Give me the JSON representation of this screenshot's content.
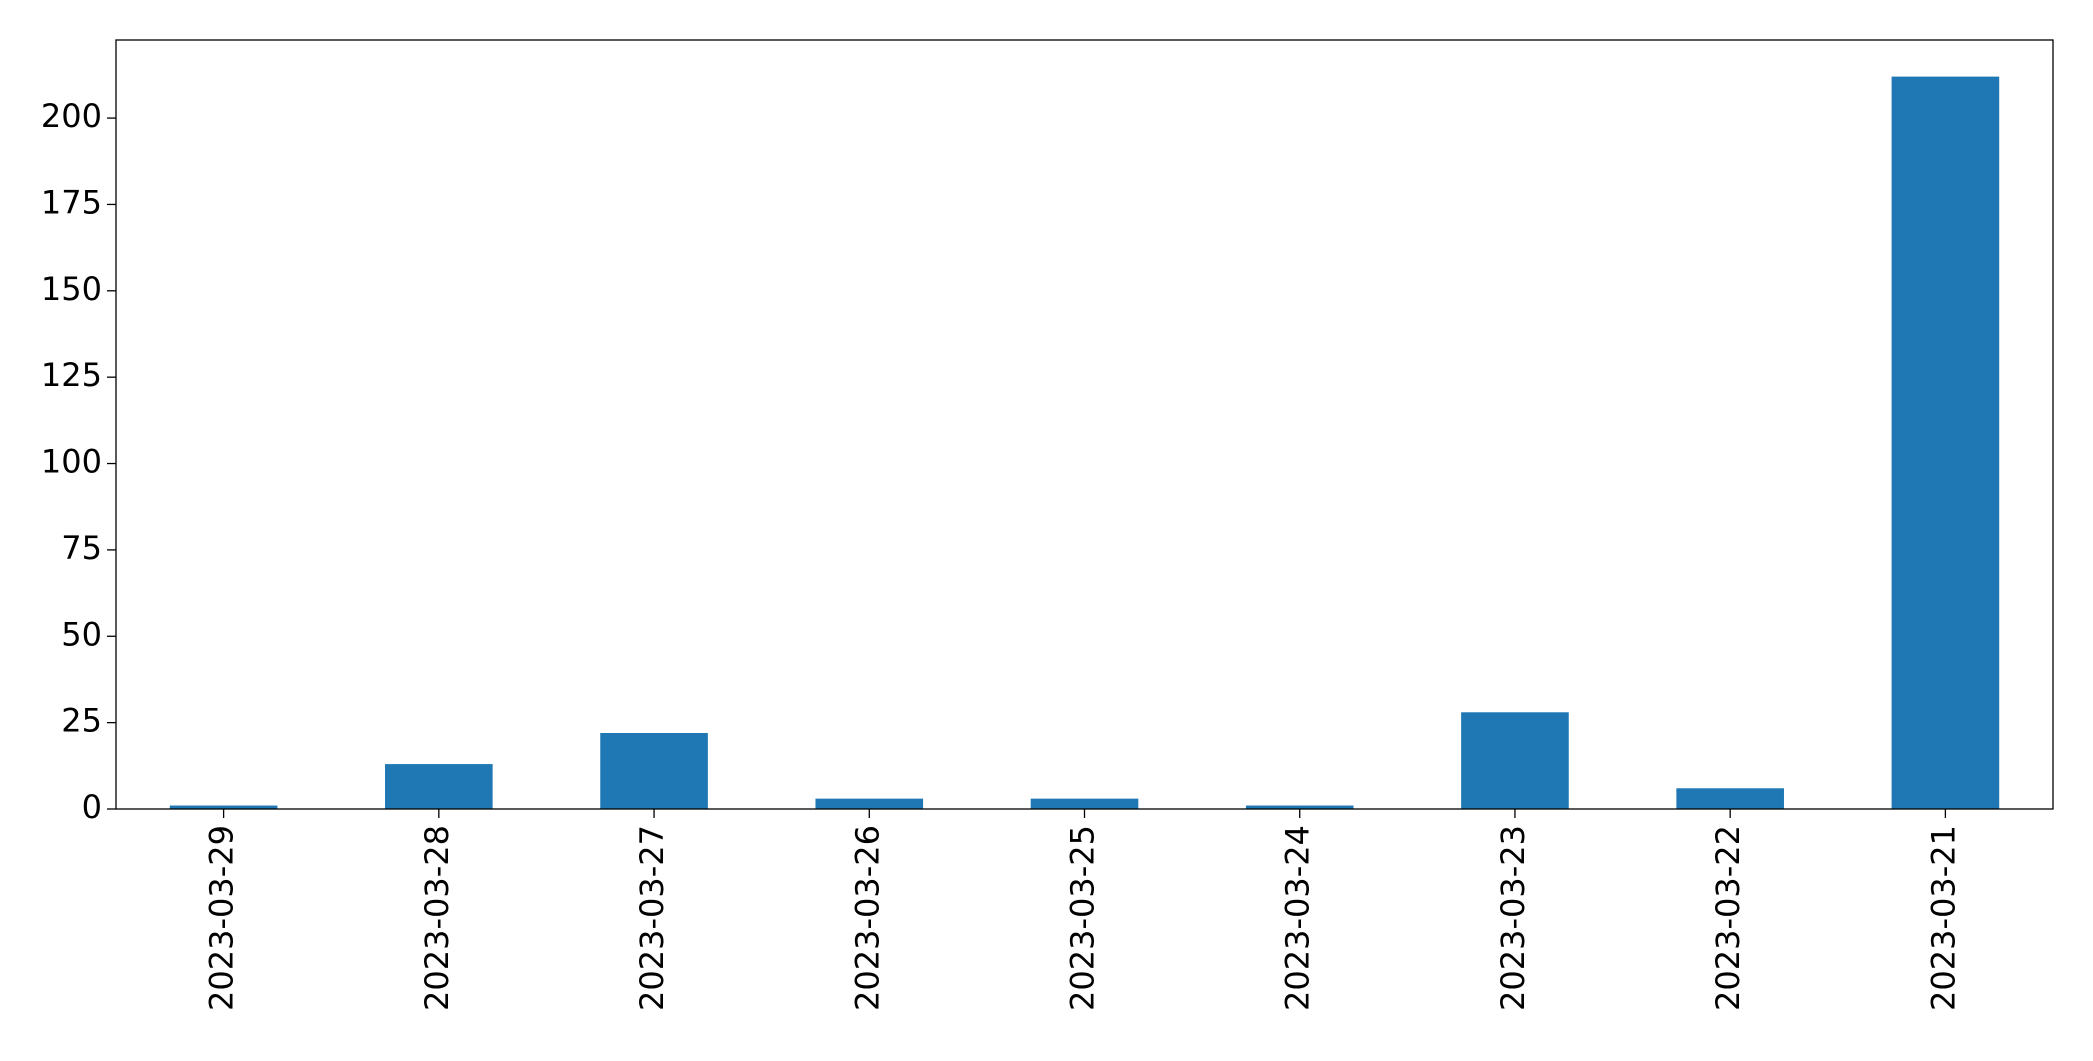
{
  "chart_data": {
    "type": "bar",
    "categories": [
      "2023-03-29",
      "2023-03-28",
      "2023-03-27",
      "2023-03-26",
      "2023-03-25",
      "2023-03-24",
      "2023-03-23",
      "2023-03-22",
      "2023-03-21"
    ],
    "values": [
      1,
      13,
      22,
      3,
      3,
      1,
      28,
      6,
      212
    ],
    "color": "#1f77b4",
    "ylim": [
      0,
      222.6
    ],
    "yticks": [
      0,
      25,
      50,
      75,
      100,
      125,
      150,
      175,
      200
    ],
    "grid": false
  }
}
